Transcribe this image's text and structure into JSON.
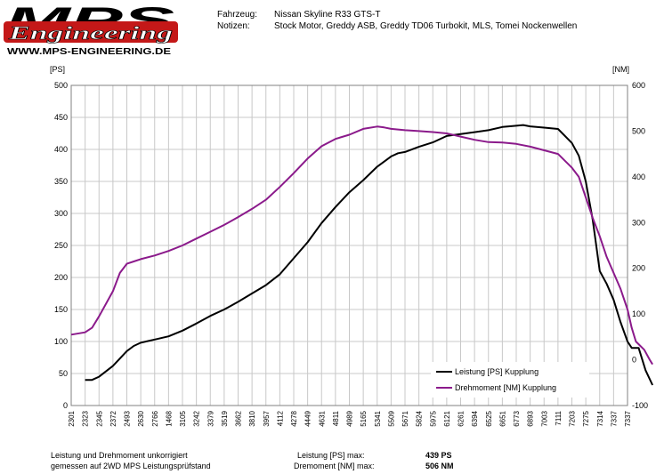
{
  "logo": {
    "name": "mps-engineering-logo",
    "text_top": "MPS",
    "text_script": "Engineering",
    "text_url": "WWW.MPS-ENGINEERING.DE"
  },
  "header": {
    "vehicle_label": "Fahrzeug:",
    "vehicle_value": "Nissan Skyline R33 GTS-T",
    "notes_label": "Notizen:",
    "notes_value": "Stock Motor, Greddy ASB, Greddy TD06 Turbokit, MLS, Tomei Nockenwellen"
  },
  "chart_data": {
    "type": "line",
    "left_axis": {
      "unit_label": "[PS]",
      "ticks": [
        0,
        50,
        100,
        150,
        200,
        250,
        300,
        350,
        400,
        450,
        500
      ],
      "range": [
        0,
        500
      ]
    },
    "right_axis": {
      "unit_label": "[NM]",
      "ticks": [
        -100,
        0,
        100,
        200,
        300,
        400,
        500,
        600
      ],
      "range": [
        -100,
        600
      ]
    },
    "x_tick_labels": [
      "2301",
      "2323",
      "2345",
      "2372",
      "2493",
      "2630",
      "2766",
      "1468",
      "3105",
      "3242",
      "3379",
      "3519",
      "3662",
      "3810",
      "3957",
      "4112",
      "4278",
      "4449",
      "4631",
      "4811",
      "4989",
      "5165",
      "5341",
      "5509",
      "5671",
      "5824",
      "5975",
      "6121",
      "6261",
      "6394",
      "6525",
      "6651",
      "6773",
      "6893",
      "7003",
      "7111",
      "7203",
      "7275",
      "7314",
      "7337",
      "7337"
    ],
    "grid": true,
    "legend_placement": "bottom-right",
    "series": [
      {
        "name": "Leistung [PS] Kupplung",
        "axis": "left",
        "color": "#000000",
        "points": [
          [
            1,
            40
          ],
          [
            1.5,
            40
          ],
          [
            2,
            45
          ],
          [
            3,
            62
          ],
          [
            4,
            85
          ],
          [
            4.5,
            93
          ],
          [
            5,
            98
          ],
          [
            6,
            103
          ],
          [
            7,
            108
          ],
          [
            8,
            117
          ],
          [
            9,
            128
          ],
          [
            10,
            140
          ],
          [
            11,
            150
          ],
          [
            12,
            162
          ],
          [
            13,
            175
          ],
          [
            14,
            188
          ],
          [
            15,
            205
          ],
          [
            16,
            230
          ],
          [
            17,
            255
          ],
          [
            18,
            285
          ],
          [
            19,
            310
          ],
          [
            20,
            333
          ],
          [
            21,
            352
          ],
          [
            22,
            373
          ],
          [
            23,
            389
          ],
          [
            23.5,
            394
          ],
          [
            24,
            396
          ],
          [
            25,
            404
          ],
          [
            26,
            411
          ],
          [
            26.5,
            416
          ],
          [
            27,
            421
          ],
          [
            28,
            424
          ],
          [
            29,
            427
          ],
          [
            30,
            430
          ],
          [
            31,
            435
          ],
          [
            32,
            437
          ],
          [
            32.5,
            438
          ],
          [
            33,
            436
          ],
          [
            34,
            434
          ],
          [
            35,
            432
          ],
          [
            36,
            410
          ],
          [
            36.5,
            390
          ],
          [
            37,
            350
          ],
          [
            37.5,
            290
          ],
          [
            38,
            210
          ],
          [
            38.5,
            190
          ],
          [
            39,
            165
          ],
          [
            39.5,
            130
          ],
          [
            40,
            100
          ],
          [
            40.3,
            90
          ],
          [
            40.8,
            90
          ],
          [
            41.3,
            55
          ],
          [
            41.8,
            32
          ]
        ]
      },
      {
        "name": "Drehmoment [NM] Kupplung",
        "axis": "right",
        "color": "#8B1A8B",
        "points": [
          [
            0,
            55
          ],
          [
            1,
            60
          ],
          [
            1.5,
            70
          ],
          [
            2,
            95
          ],
          [
            3,
            150
          ],
          [
            3.5,
            190
          ],
          [
            4,
            210
          ],
          [
            4.5,
            215
          ],
          [
            5,
            220
          ],
          [
            6,
            228
          ],
          [
            7,
            238
          ],
          [
            8,
            250
          ],
          [
            9,
            265
          ],
          [
            10,
            280
          ],
          [
            11,
            295
          ],
          [
            12,
            312
          ],
          [
            13,
            330
          ],
          [
            14,
            350
          ],
          [
            15,
            378
          ],
          [
            16,
            408
          ],
          [
            17,
            440
          ],
          [
            18,
            467
          ],
          [
            19,
            483
          ],
          [
            20,
            492
          ],
          [
            21,
            505
          ],
          [
            22,
            510
          ],
          [
            22.5,
            508
          ],
          [
            23,
            505
          ],
          [
            24,
            502
          ],
          [
            25,
            500
          ],
          [
            26,
            498
          ],
          [
            27,
            495
          ],
          [
            28,
            488
          ],
          [
            29,
            481
          ],
          [
            30,
            476
          ],
          [
            31,
            475
          ],
          [
            32,
            472
          ],
          [
            33,
            466
          ],
          [
            34,
            458
          ],
          [
            35,
            450
          ],
          [
            36,
            420
          ],
          [
            36.5,
            400
          ],
          [
            37,
            355
          ],
          [
            37.5,
            310
          ],
          [
            38,
            270
          ],
          [
            38.5,
            225
          ],
          [
            39,
            190
          ],
          [
            39.5,
            155
          ],
          [
            40,
            110
          ],
          [
            40.3,
            70
          ],
          [
            40.6,
            40
          ],
          [
            41.2,
            22
          ],
          [
            41.6,
            0
          ],
          [
            41.8,
            -10
          ]
        ]
      }
    ]
  },
  "footer": {
    "note_line1": "Leistung und Drehmoment unkorrigiert",
    "note_line2": "gemessen auf 2WD MPS Leistungsprüfstand",
    "power_max_label": "Leistung [PS] max:",
    "power_max_value": "439 PS",
    "torque_max_label": "Dremoment [NM] max:",
    "torque_max_value": "506 NM"
  }
}
